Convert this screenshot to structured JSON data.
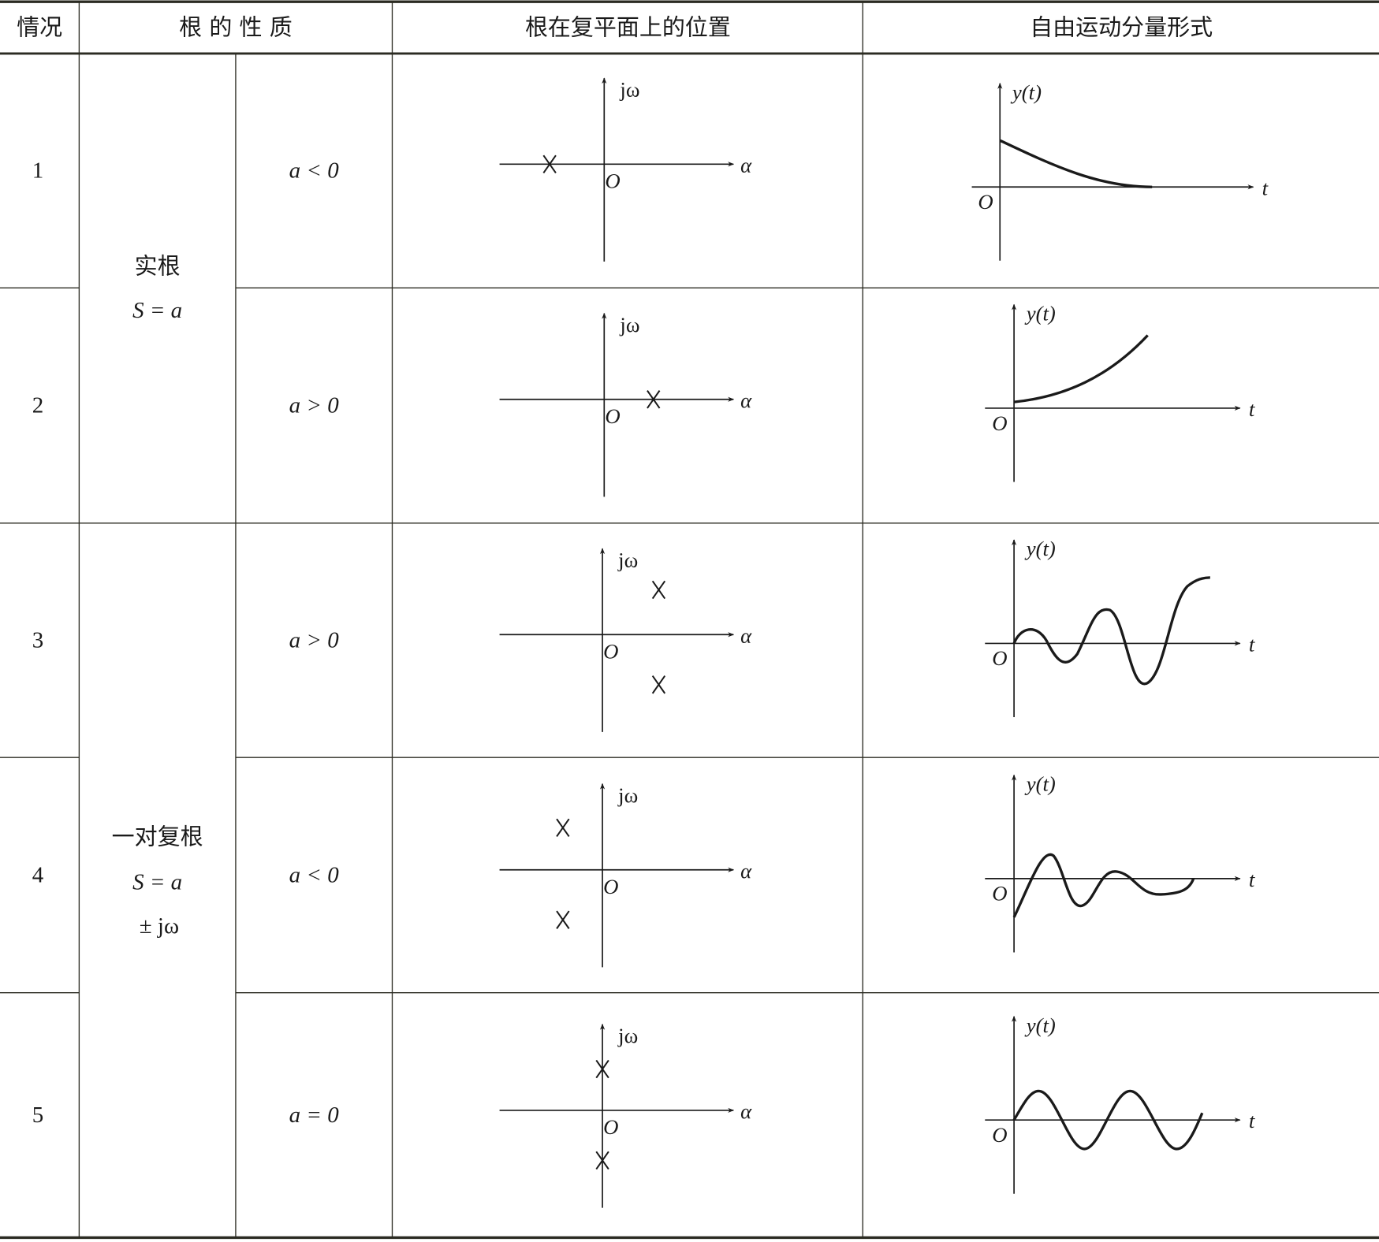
{
  "header": {
    "case": "情况",
    "nature": "根 的 性 质",
    "position": "根在复平面上的位置",
    "form": "自由运动分量形式"
  },
  "groups": [
    {
      "title": "实根",
      "formula": "S = a",
      "formula2": ""
    },
    {
      "title": "一对复根",
      "formula": "S = a",
      "formula2": "± jω"
    }
  ],
  "rows": [
    {
      "case": "1",
      "condition": "a < 0",
      "roots": "one real root on negative real axis",
      "response": "decaying exponential"
    },
    {
      "case": "2",
      "condition": "a > 0",
      "roots": "one real root on positive real axis",
      "response": "growing exponential"
    },
    {
      "case": "3",
      "condition": "a > 0",
      "roots": "conjugate pair in right half-plane",
      "response": "growing oscillation"
    },
    {
      "case": "4",
      "condition": "a < 0",
      "roots": "conjugate pair in left half-plane",
      "response": "decaying oscillation"
    },
    {
      "case": "5",
      "condition": "a = 0",
      "roots": "conjugate pair on imaginary axis",
      "response": "sustained oscillation"
    }
  ],
  "axes": {
    "imag": "jω",
    "real": "α",
    "origin": "O",
    "y": "y(t)",
    "t": "t"
  },
  "colors": {
    "line": "#1a1a1a",
    "border": "#2b2b22"
  }
}
